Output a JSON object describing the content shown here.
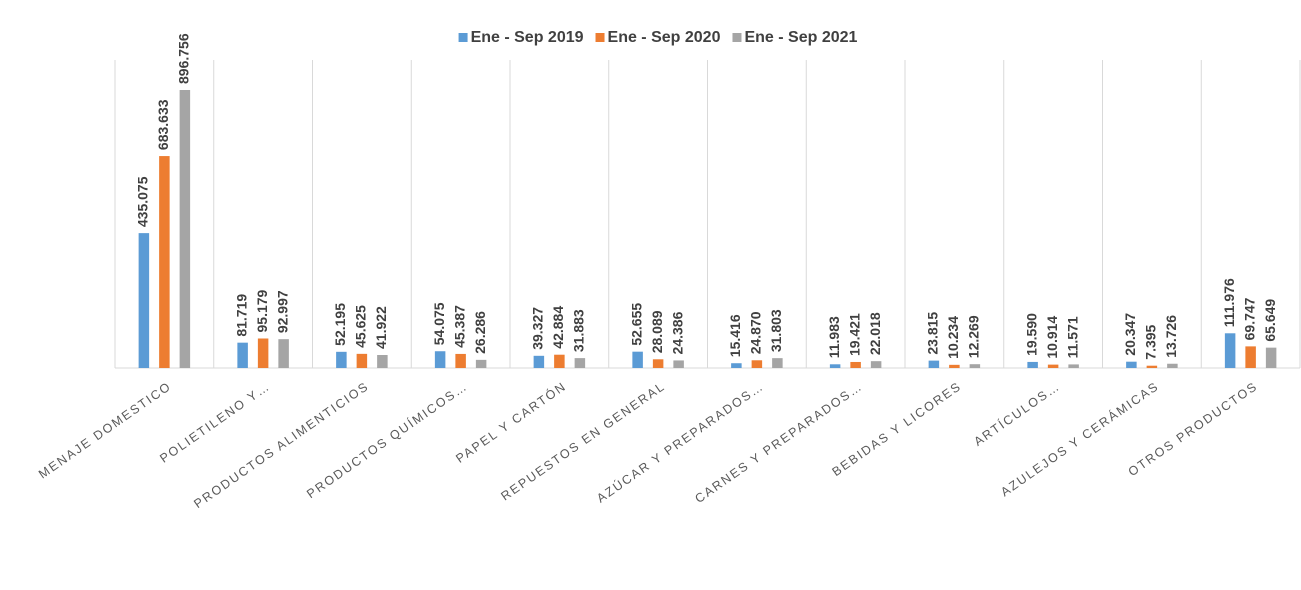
{
  "chart_data": {
    "type": "bar",
    "categories": [
      "MENAJE DOMESTICO",
      "POLIETILENO Y…",
      "PRODUCTOS ALIMENTICIOS",
      "PRODUCTOS QUÍMICOS…",
      "PAPEL Y CARTÓN",
      "REPUESTOS EN GENERAL",
      "AZÚCAR Y PREPARADOS…",
      "CARNES Y PREPARADOS…",
      "BEBIDAS Y LICORES",
      "ARTÍCULOS…",
      "AZULEJOS Y CERÁMICAS",
      "OTROS PRODUCTOS"
    ],
    "series": [
      {
        "name": "Ene - Sep 2019",
        "color": "#5b9bd5",
        "values": [
          435075,
          81719,
          52195,
          54075,
          39327,
          52655,
          15416,
          11983,
          23815,
          19590,
          20347,
          111976
        ],
        "value_labels": [
          "435.075",
          "81.719",
          "52.195",
          "54.075",
          "39.327",
          "52.655",
          "15.416",
          "11.983",
          "23.815",
          "19.590",
          "20.347",
          "111.976"
        ]
      },
      {
        "name": "Ene - Sep 2020",
        "color": "#ed7d31",
        "values": [
          683633,
          95179,
          45625,
          45387,
          42884,
          28089,
          24870,
          19421,
          10234,
          10914,
          7395,
          69747
        ],
        "value_labels": [
          "683.633",
          "95.179",
          "45.625",
          "45.387",
          "42.884",
          "28.089",
          "24.870",
          "19.421",
          "10.234",
          "10.914",
          "7.395",
          "69.747"
        ]
      },
      {
        "name": "Ene -  Sep 2021",
        "color": "#a5a5a5",
        "values": [
          896756,
          92997,
          41922,
          26286,
          31883,
          24386,
          31803,
          22018,
          12269,
          11571,
          13726,
          65649
        ],
        "value_labels": [
          "896.756",
          "92.997",
          "41.922",
          "26.286",
          "31.883",
          "24.386",
          "31.803",
          "22.018",
          "12.269",
          "11.571",
          "13.726",
          "65.649"
        ]
      }
    ]
  }
}
